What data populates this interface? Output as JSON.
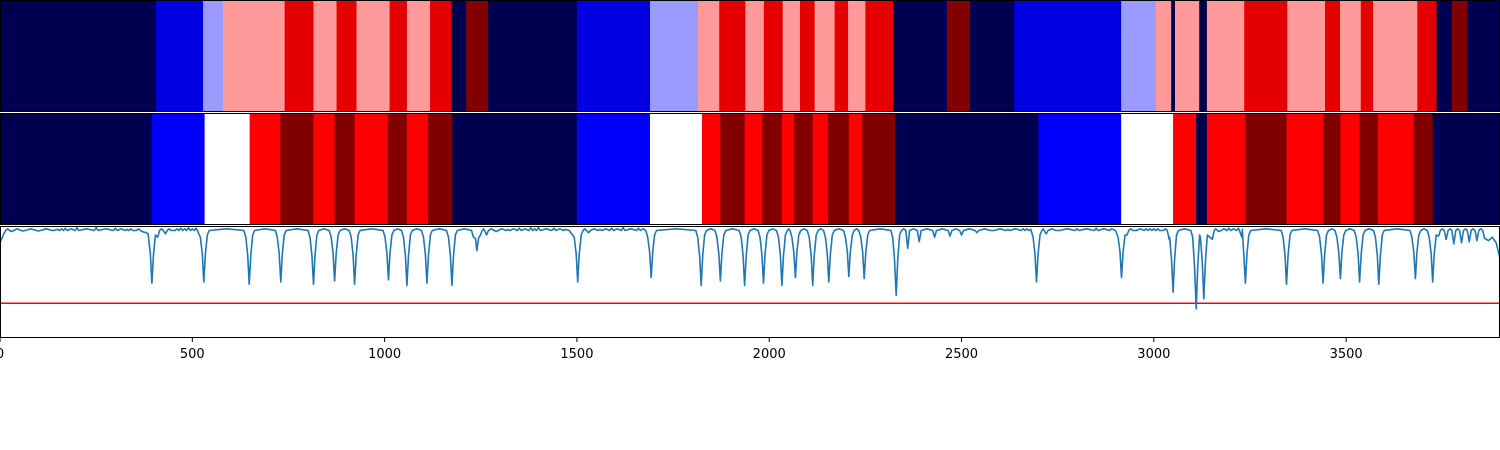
{
  "chart_data": [
    {
      "type": "heatmap",
      "xlim": [
        0,
        3900
      ],
      "colors": {
        "navy": "#000050",
        "blue": "#0000e0",
        "lightblue": "#9a9aff",
        "pink": "#ff9a9a",
        "red": "#e50000",
        "maroon": "#810000",
        "white": "#ffffff"
      },
      "segments": [
        {
          "start": 0,
          "end": 406,
          "color": "navy"
        },
        {
          "start": 406,
          "end": 528,
          "color": "blue"
        },
        {
          "start": 528,
          "end": 580,
          "color": "lightblue"
        },
        {
          "start": 580,
          "end": 740,
          "color": "pink"
        },
        {
          "start": 740,
          "end": 815,
          "color": "red"
        },
        {
          "start": 815,
          "end": 875,
          "color": "pink"
        },
        {
          "start": 875,
          "end": 927,
          "color": "red"
        },
        {
          "start": 927,
          "end": 1013,
          "color": "pink"
        },
        {
          "start": 1013,
          "end": 1058,
          "color": "red"
        },
        {
          "start": 1058,
          "end": 1118,
          "color": "pink"
        },
        {
          "start": 1118,
          "end": 1174,
          "color": "red"
        },
        {
          "start": 1174,
          "end": 1212,
          "color": "navy"
        },
        {
          "start": 1212,
          "end": 1269,
          "color": "maroon"
        },
        {
          "start": 1269,
          "end": 1500,
          "color": "navy"
        },
        {
          "start": 1500,
          "end": 1690,
          "color": "blue"
        },
        {
          "start": 1690,
          "end": 1815,
          "color": "lightblue"
        },
        {
          "start": 1815,
          "end": 1870,
          "color": "pink"
        },
        {
          "start": 1870,
          "end": 1938,
          "color": "red"
        },
        {
          "start": 1938,
          "end": 1986,
          "color": "pink"
        },
        {
          "start": 1986,
          "end": 2035,
          "color": "red"
        },
        {
          "start": 2035,
          "end": 2080,
          "color": "pink"
        },
        {
          "start": 2080,
          "end": 2118,
          "color": "red"
        },
        {
          "start": 2118,
          "end": 2170,
          "color": "pink"
        },
        {
          "start": 2170,
          "end": 2205,
          "color": "red"
        },
        {
          "start": 2205,
          "end": 2250,
          "color": "pink"
        },
        {
          "start": 2250,
          "end": 2322,
          "color": "red"
        },
        {
          "start": 2322,
          "end": 2462,
          "color": "navy"
        },
        {
          "start": 2462,
          "end": 2522,
          "color": "maroon"
        },
        {
          "start": 2522,
          "end": 2637,
          "color": "navy"
        },
        {
          "start": 2637,
          "end": 2915,
          "color": "blue"
        },
        {
          "start": 2915,
          "end": 3005,
          "color": "lightblue"
        },
        {
          "start": 3005,
          "end": 3045,
          "color": "pink"
        },
        {
          "start": 3045,
          "end": 3055,
          "color": "navy"
        },
        {
          "start": 3055,
          "end": 3118,
          "color": "pink"
        },
        {
          "start": 3118,
          "end": 3138,
          "color": "navy"
        },
        {
          "start": 3138,
          "end": 3235,
          "color": "pink"
        },
        {
          "start": 3235,
          "end": 3347,
          "color": "red"
        },
        {
          "start": 3347,
          "end": 3445,
          "color": "pink"
        },
        {
          "start": 3445,
          "end": 3484,
          "color": "red"
        },
        {
          "start": 3484,
          "end": 3538,
          "color": "pink"
        },
        {
          "start": 3538,
          "end": 3570,
          "color": "red"
        },
        {
          "start": 3570,
          "end": 3685,
          "color": "pink"
        },
        {
          "start": 3685,
          "end": 3735,
          "color": "red"
        },
        {
          "start": 3735,
          "end": 3775,
          "color": "navy"
        },
        {
          "start": 3775,
          "end": 3815,
          "color": "maroon"
        },
        {
          "start": 3815,
          "end": 3900,
          "color": "navy"
        }
      ]
    },
    {
      "type": "heatmap",
      "xlim": [
        0,
        3900
      ],
      "colors": {
        "navy": "#000050",
        "blue": "#0000ff",
        "white": "#ffffff",
        "red": "#ff0000",
        "maroon": "#800000"
      },
      "segments": [
        {
          "start": 0,
          "end": 395,
          "color": "navy"
        },
        {
          "start": 395,
          "end": 532,
          "color": "blue"
        },
        {
          "start": 532,
          "end": 649,
          "color": "white"
        },
        {
          "start": 649,
          "end": 729,
          "color": "red"
        },
        {
          "start": 729,
          "end": 815,
          "color": "maroon"
        },
        {
          "start": 815,
          "end": 870,
          "color": "red"
        },
        {
          "start": 870,
          "end": 922,
          "color": "maroon"
        },
        {
          "start": 922,
          "end": 1008,
          "color": "red"
        },
        {
          "start": 1008,
          "end": 1058,
          "color": "maroon"
        },
        {
          "start": 1058,
          "end": 1113,
          "color": "red"
        },
        {
          "start": 1113,
          "end": 1176,
          "color": "maroon"
        },
        {
          "start": 1176,
          "end": 1500,
          "color": "navy"
        },
        {
          "start": 1500,
          "end": 1690,
          "color": "blue"
        },
        {
          "start": 1690,
          "end": 1825,
          "color": "white"
        },
        {
          "start": 1825,
          "end": 1873,
          "color": "red"
        },
        {
          "start": 1873,
          "end": 1936,
          "color": "maroon"
        },
        {
          "start": 1936,
          "end": 1982,
          "color": "red"
        },
        {
          "start": 1982,
          "end": 2033,
          "color": "maroon"
        },
        {
          "start": 2033,
          "end": 2065,
          "color": "red"
        },
        {
          "start": 2065,
          "end": 2113,
          "color": "maroon"
        },
        {
          "start": 2113,
          "end": 2153,
          "color": "red"
        },
        {
          "start": 2153,
          "end": 2207,
          "color": "maroon"
        },
        {
          "start": 2207,
          "end": 2242,
          "color": "red"
        },
        {
          "start": 2242,
          "end": 2327,
          "color": "maroon"
        },
        {
          "start": 2327,
          "end": 2700,
          "color": "navy"
        },
        {
          "start": 2700,
          "end": 2915,
          "color": "blue"
        },
        {
          "start": 2915,
          "end": 3050,
          "color": "white"
        },
        {
          "start": 3050,
          "end": 3110,
          "color": "red"
        },
        {
          "start": 3110,
          "end": 3138,
          "color": "navy"
        },
        {
          "start": 3138,
          "end": 3238,
          "color": "red"
        },
        {
          "start": 3238,
          "end": 3345,
          "color": "maroon"
        },
        {
          "start": 3345,
          "end": 3440,
          "color": "red"
        },
        {
          "start": 3440,
          "end": 3485,
          "color": "maroon"
        },
        {
          "start": 3485,
          "end": 3535,
          "color": "red"
        },
        {
          "start": 3535,
          "end": 3583,
          "color": "maroon"
        },
        {
          "start": 3583,
          "end": 3675,
          "color": "red"
        },
        {
          "start": 3675,
          "end": 3725,
          "color": "maroon"
        },
        {
          "start": 3725,
          "end": 3900,
          "color": "navy"
        }
      ]
    },
    {
      "type": "line",
      "xlim": [
        0,
        3900
      ],
      "ylim": [
        0,
        1
      ],
      "threshold": {
        "y": 0.31,
        "color": "#ff0000"
      },
      "baseline_segments": [
        {
          "x": [
            0,
            10,
            30,
            60,
            100,
            140,
            150,
            170,
            200,
            250,
            300,
            330,
            350,
            370,
            380,
            385
          ],
          "y": [
            0.85,
            0.93,
            0.95,
            0.955,
            0.955,
            0.96,
            0.97,
            0.98,
            0.985,
            0.985,
            0.98,
            0.97,
            0.96,
            0.95,
            0.94,
            0.93
          ]
        },
        {
          "x": [
            410,
            430,
            450,
            470,
            490,
            510
          ],
          "y": [
            0.9,
            0.93,
            0.96,
            0.98,
            0.985,
            0.98
          ]
        },
        {
          "x": [
            1265,
            1290,
            1320,
            1350,
            1380,
            1400,
            1440,
            1470,
            1480
          ],
          "y": [
            0.92,
            0.95,
            0.97,
            0.98,
            0.985,
            0.985,
            0.98,
            0.97,
            0.96
          ]
        },
        {
          "x": [
            1510,
            1530,
            1560,
            1590,
            1620,
            1660
          ],
          "y": [
            0.88,
            0.94,
            0.97,
            0.98,
            0.985,
            0.98
          ]
        },
        {
          "x": [
            2360,
            2390,
            2430,
            2470,
            2500,
            2540,
            2580,
            2620,
            2660,
            2680
          ],
          "y": [
            0.8,
            0.86,
            0.9,
            0.91,
            0.92,
            0.94,
            0.96,
            0.97,
            0.975,
            0.97
          ]
        },
        {
          "x": [
            2720,
            2750,
            2800,
            2850,
            2890,
            2900
          ],
          "y": [
            0.93,
            0.96,
            0.975,
            0.98,
            0.975,
            0.96
          ]
        },
        {
          "x": [
            2930,
            2950,
            2980,
            3000,
            3020,
            3040
          ],
          "y": [
            0.92,
            0.96,
            0.975,
            0.975,
            0.96,
            0.88
          ]
        },
        {
          "x": [
            3152,
            3170,
            3195,
            3220,
            3230
          ],
          "y": [
            0.88,
            0.95,
            0.98,
            0.98,
            0.97
          ]
        },
        {
          "x": [
            3740,
            3760,
            3780,
            3800,
            3820,
            3840,
            3860,
            3870,
            3880,
            3890,
            3900
          ],
          "y": [
            0.91,
            0.88,
            0.84,
            0.85,
            0.86,
            0.87,
            0.89,
            0.87,
            0.9,
            0.85,
            0.71
          ]
        }
      ],
      "dips": [
        [
          395,
          0.49
        ],
        [
          530,
          0.5
        ],
        [
          648,
          0.48
        ],
        [
          730,
          0.5
        ],
        [
          815,
          0.48
        ],
        [
          870,
          0.51
        ],
        [
          922,
          0.48
        ],
        [
          1010,
          0.52
        ],
        [
          1058,
          0.47
        ],
        [
          1110,
          0.49
        ],
        [
          1175,
          0.47
        ],
        [
          1240,
          0.78
        ],
        [
          1502,
          0.5
        ],
        [
          1693,
          0.54
        ],
        [
          1823,
          0.47
        ],
        [
          1873,
          0.51
        ],
        [
          1936,
          0.47
        ],
        [
          1985,
          0.49
        ],
        [
          2033,
          0.47
        ],
        [
          2068,
          0.54
        ],
        [
          2113,
          0.47
        ],
        [
          2155,
          0.5
        ],
        [
          2207,
          0.55
        ],
        [
          2247,
          0.53
        ],
        [
          2330,
          0.38
        ],
        [
          2695,
          0.5
        ],
        [
          2916,
          0.54
        ],
        [
          3050,
          0.41
        ],
        [
          3110,
          0.26
        ],
        [
          3130,
          0.35
        ],
        [
          3238,
          0.49
        ],
        [
          3345,
          0.48
        ],
        [
          3440,
          0.49
        ],
        [
          3485,
          0.53
        ],
        [
          3535,
          0.5
        ],
        [
          3585,
          0.48
        ],
        [
          3680,
          0.53
        ],
        [
          3725,
          0.5
        ]
      ]
    }
  ],
  "axis": {
    "ticks": [
      {
        "value": 0,
        "label": "0"
      },
      {
        "value": 500,
        "label": "500"
      },
      {
        "value": 1000,
        "label": "1000"
      },
      {
        "value": 1500,
        "label": "1500"
      },
      {
        "value": 2000,
        "label": "2000"
      },
      {
        "value": 2500,
        "label": "2500"
      },
      {
        "value": 3000,
        "label": "3000"
      },
      {
        "value": 3500,
        "label": "3500"
      }
    ]
  },
  "line_color": "#1f77b4"
}
